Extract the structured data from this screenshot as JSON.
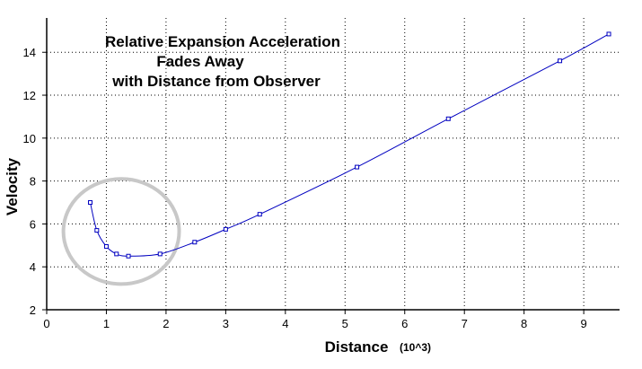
{
  "chart_data": {
    "type": "line",
    "title_lines": [
      "Relative Expansion Acceleration",
      "Fades Away",
      "with Distance from Observer"
    ],
    "xlabel": "Distance",
    "xlabel_unit": "(10^3)",
    "ylabel": "Velocity",
    "xlim": [
      0,
      9.6
    ],
    "ylim": [
      2,
      15.6
    ],
    "x_ticks": [
      0,
      1,
      2,
      3,
      4,
      5,
      6,
      7,
      8,
      9
    ],
    "y_ticks": [
      2,
      4,
      6,
      8,
      10,
      12,
      14
    ],
    "grid": true,
    "legend": "none",
    "highlight_circle": {
      "cx": 1.25,
      "cy": 5.65,
      "rx": 0.97,
      "ry": 2.45,
      "color": "#c8c8c8"
    },
    "series": [
      {
        "color": "#0000c0",
        "x": [
          0.73,
          0.84,
          1.0,
          1.17,
          1.37,
          1.9,
          2.48,
          3.0,
          3.57,
          5.2,
          6.73,
          8.6,
          9.42
        ],
        "y": [
          7.0,
          5.7,
          4.95,
          4.6,
          4.5,
          4.6,
          5.15,
          5.75,
          6.45,
          8.65,
          10.9,
          13.6,
          14.85
        ]
      }
    ]
  }
}
